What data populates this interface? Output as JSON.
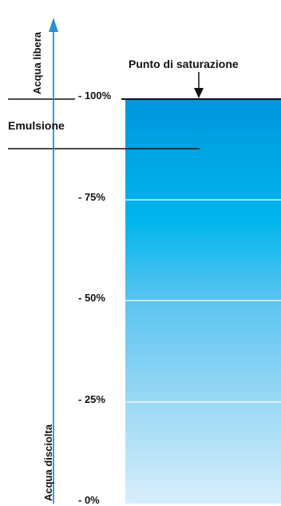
{
  "labels": {
    "free_water": "Acqua libera",
    "dissolved_water": "Acqua disciolta",
    "emulsion": "Emulsione",
    "saturation_point": "Punto di saturazione"
  },
  "scale": [
    "- 100%",
    "- 75%",
    "- 50%",
    "- 25%",
    "- 0%"
  ],
  "colors": {
    "axis": "#2a8fd0",
    "column_top": "#0096dc",
    "column_mid": "#00b4eb",
    "column_bottom": "#d2ecfb",
    "lines": "#111111"
  }
}
